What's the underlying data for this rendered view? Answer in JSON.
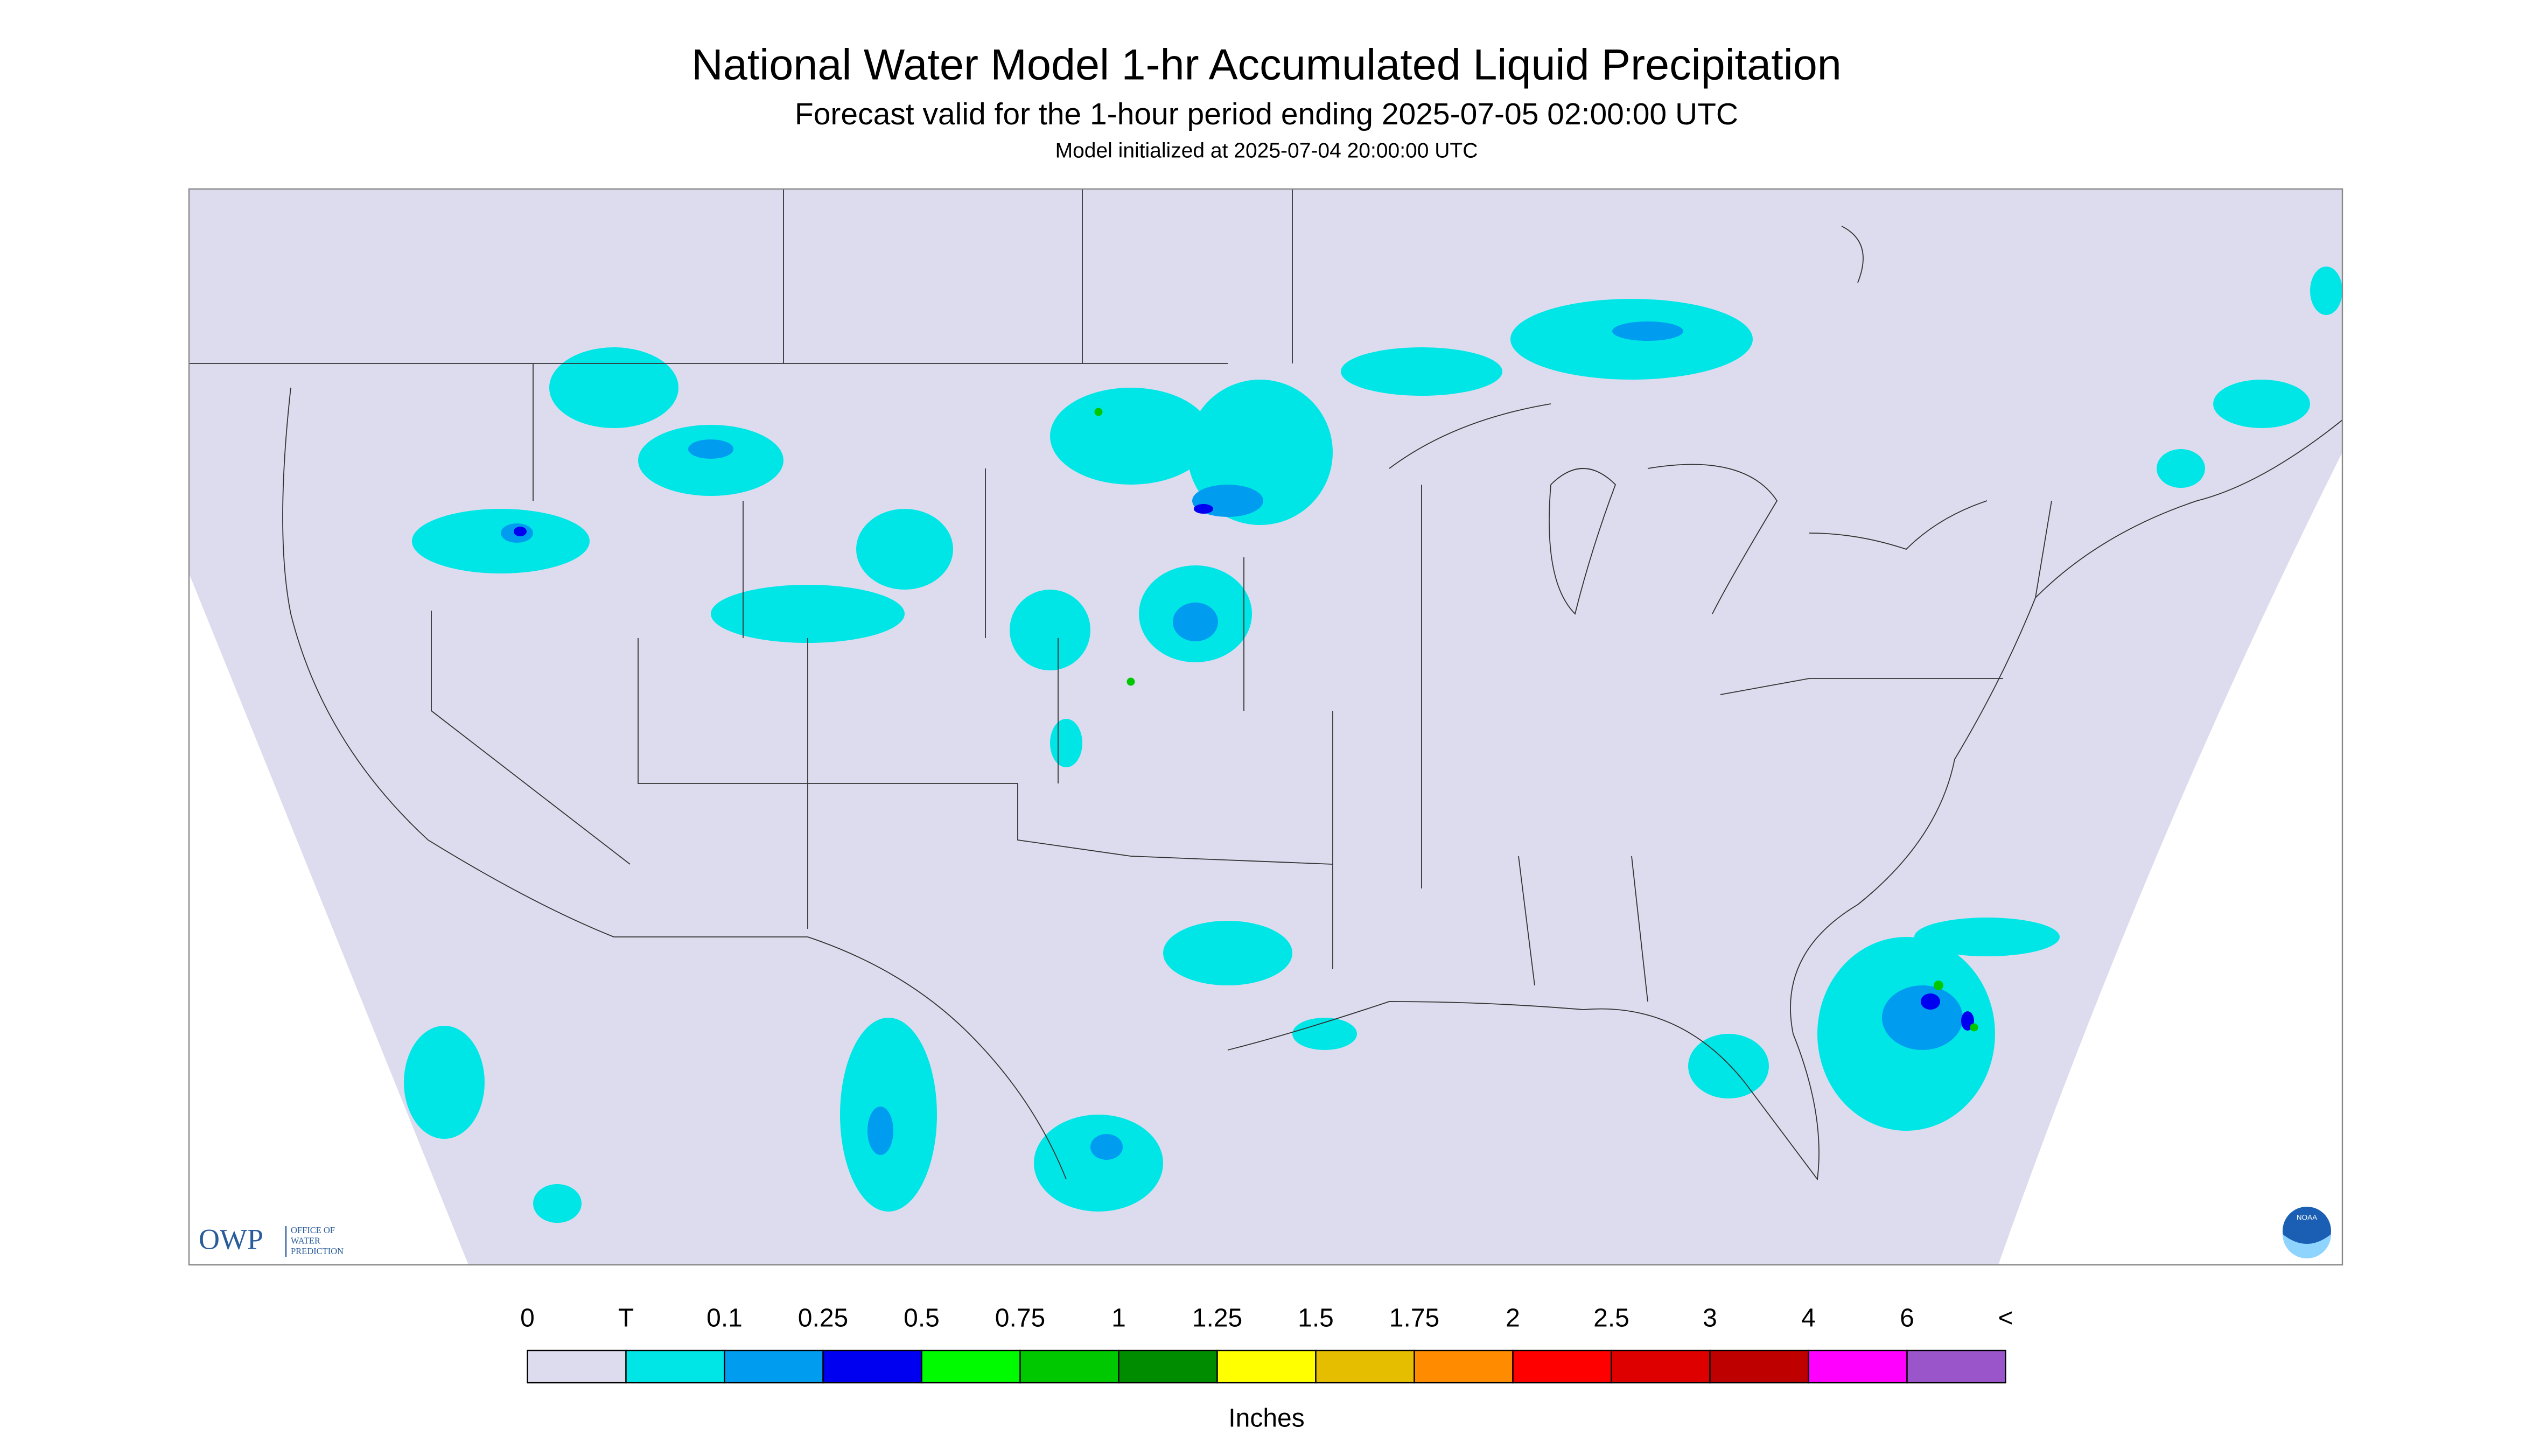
{
  "header": {
    "title": "National Water Model 1-hr Accumulated Liquid Precipitation",
    "subtitle": "Forecast valid for the 1-hour period ending 2025-07-05 02:00:00 UTC",
    "init": "Model initialized at 2025-07-04 20:00:00 UTC"
  },
  "legend": {
    "labels": [
      "0",
      "T",
      "0.1",
      "0.25",
      "0.5",
      "0.75",
      "1",
      "1.25",
      "1.5",
      "1.75",
      "2",
      "2.5",
      "3",
      "4",
      "6",
      "<"
    ],
    "colors": [
      "#dcdcee",
      "#00e6e6",
      "#009cf0",
      "#0000f0",
      "#00fa00",
      "#00c800",
      "#008c00",
      "#ffff00",
      "#e6be00",
      "#ff8c00",
      "#ff0000",
      "#de0000",
      "#be0000",
      "#ff00ff",
      "#9955c9"
    ],
    "unit": "Inches"
  },
  "logo": {
    "abbr": "OWP",
    "lines": [
      "OFFICE OF",
      "WATER",
      "PREDICTION"
    ]
  },
  "badge": "NOAA"
}
